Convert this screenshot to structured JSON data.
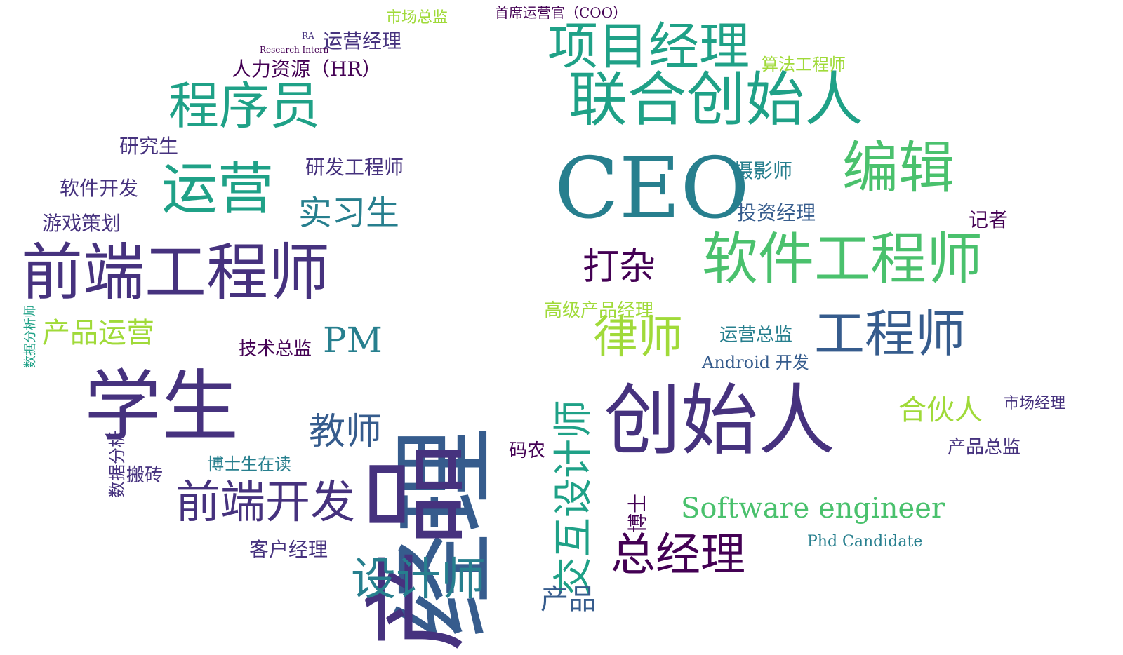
{
  "palette": [
    "#440154",
    "#46327e",
    "#365c8d",
    "#277f8e",
    "#1fa187",
    "#4ac16d",
    "#a0da39",
    "#fde725"
  ],
  "words": [
    {
      "text": "经理",
      "color": "#365c8d"
    },
    {
      "text": "产品",
      "color": "#46327e"
    },
    {
      "text": "CEO",
      "color": "#277f8e"
    },
    {
      "text": "创始人",
      "color": "#46327e"
    },
    {
      "text": "学生",
      "color": "#46327e"
    },
    {
      "text": "前端工程师",
      "color": "#46327e"
    },
    {
      "text": "联合创始人",
      "color": "#1fa187"
    },
    {
      "text": "项目经理",
      "color": "#1fa187"
    },
    {
      "text": "程序员",
      "color": "#1fa187"
    },
    {
      "text": "运营",
      "color": "#1fa187"
    },
    {
      "text": "编辑",
      "color": "#4ac16d"
    },
    {
      "text": "软件工程师",
      "color": "#4ac16d"
    },
    {
      "text": "工程师",
      "color": "#365c8d"
    },
    {
      "text": "前端开发",
      "color": "#46327e"
    },
    {
      "text": "设计师",
      "color": "#277f8e"
    },
    {
      "text": "总经理",
      "color": "#440154"
    },
    {
      "text": "律师",
      "color": "#a0da39"
    },
    {
      "text": "交互设计师",
      "color": "#1fa187"
    },
    {
      "text": "教师",
      "color": "#365c8d"
    },
    {
      "text": "实习生",
      "color": "#277f8e"
    },
    {
      "text": "产品运营",
      "color": "#a0da39"
    },
    {
      "text": "PM",
      "color": "#277f8e"
    },
    {
      "text": "打杂",
      "color": "#440154"
    },
    {
      "text": "合伙人",
      "color": "#a0da39"
    },
    {
      "text": "Software engineer",
      "color": "#4ac16d"
    },
    {
      "text": "产品",
      "color": "#365c8d"
    },
    {
      "text": "人力资源（HR）",
      "color": "#440154"
    },
    {
      "text": "研发工程师",
      "color": "#46327e"
    },
    {
      "text": "游戏策划",
      "color": "#46327e"
    },
    {
      "text": "软件开发",
      "color": "#46327e"
    },
    {
      "text": "运营经理",
      "color": "#46327e"
    },
    {
      "text": "研究生",
      "color": "#46327e"
    },
    {
      "text": "摄影师",
      "color": "#277f8e"
    },
    {
      "text": "投资经理",
      "color": "#365c8d"
    },
    {
      "text": "记者",
      "color": "#440154"
    },
    {
      "text": "高级产品经理",
      "color": "#a0da39"
    },
    {
      "text": "运营总监",
      "color": "#277f8e"
    },
    {
      "text": "技术总监",
      "color": "#440154"
    },
    {
      "text": "Android 开发",
      "color": "#365c8d"
    },
    {
      "text": "客户经理",
      "color": "#46327e"
    },
    {
      "text": "博士生在读",
      "color": "#277f8e"
    },
    {
      "text": "产品总监",
      "color": "#46327e"
    },
    {
      "text": "市场经理",
      "color": "#46327e"
    },
    {
      "text": "首席运营官（COO）",
      "color": "#440154"
    },
    {
      "text": "算法工程师",
      "color": "#a0da39"
    },
    {
      "text": "数据分析",
      "color": "#46327e"
    },
    {
      "text": "搬砖",
      "color": "#46327e"
    },
    {
      "text": "码农",
      "color": "#440154"
    },
    {
      "text": "博士",
      "color": "#440154"
    },
    {
      "text": "Phd Candidate",
      "color": "#277f8e"
    },
    {
      "text": "数据分析师",
      "color": "#1fa187"
    },
    {
      "text": "Research Intern",
      "color": "#440154"
    },
    {
      "text": "RA",
      "color": "#46327e"
    },
    {
      "text": "市场总监",
      "color": "#a0da39"
    }
  ]
}
